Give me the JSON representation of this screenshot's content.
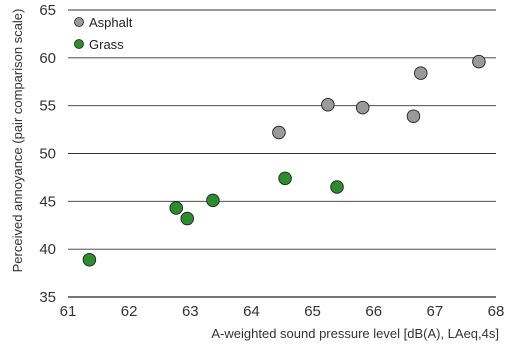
{
  "chart_data": {
    "type": "scatter",
    "xlabel": "A-weighted sound pressure level [dB(A), LAeq,4s]",
    "ylabel": "Perceived annoyance (pair comparison scale)",
    "xlim": [
      61,
      68
    ],
    "ylim": [
      35,
      65
    ],
    "x_ticks": [
      "61",
      "62",
      "63",
      "64",
      "65",
      "66",
      "67",
      "68"
    ],
    "y_ticks": [
      "35",
      "40",
      "45",
      "50",
      "55",
      "60",
      "65"
    ],
    "grid": "horizontal",
    "legend_position": "top-left",
    "series": [
      {
        "name": "Asphalt",
        "color": "#9a9a9a",
        "points": [
          {
            "x": 64.45,
            "y": 52.2
          },
          {
            "x": 65.25,
            "y": 55.1
          },
          {
            "x": 65.82,
            "y": 54.8
          },
          {
            "x": 66.65,
            "y": 53.9
          },
          {
            "x": 66.77,
            "y": 58.4
          },
          {
            "x": 67.72,
            "y": 59.6
          }
        ]
      },
      {
        "name": "Grass",
        "color": "#2e8b2e",
        "points": [
          {
            "x": 61.35,
            "y": 38.9
          },
          {
            "x": 62.77,
            "y": 44.3
          },
          {
            "x": 62.95,
            "y": 43.2
          },
          {
            "x": 63.37,
            "y": 45.1
          },
          {
            "x": 64.55,
            "y": 47.4
          },
          {
            "x": 65.4,
            "y": 46.5
          }
        ]
      }
    ]
  }
}
